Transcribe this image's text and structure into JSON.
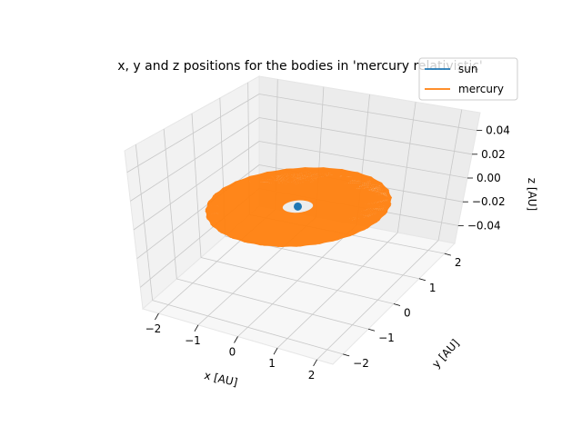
{
  "chart_data": {
    "type": "scatter3d",
    "title": "x, y and z positions for the bodies in 'mercury relativistic'",
    "xlabel": "x [AU]",
    "ylabel": "y [AU]",
    "zlabel": "z [AU]",
    "xlim": [
      -2.4,
      2.4
    ],
    "ylim": [
      -2.4,
      2.4
    ],
    "zlim": [
      -0.055,
      0.055
    ],
    "x_ticks": [
      "−2",
      "−1",
      "0",
      "1",
      "2"
    ],
    "y_ticks": [
      "−2",
      "−1",
      "0",
      "1",
      "2"
    ],
    "z_ticks": [
      "−0.04",
      "−0.02",
      "0.00",
      "0.02",
      "0.04"
    ],
    "x_tick_values": [
      -2,
      -1,
      0,
      1,
      2
    ],
    "y_tick_values": [
      -2,
      -1,
      0,
      1,
      2
    ],
    "z_tick_values": [
      -0.04,
      -0.02,
      0.0,
      0.02,
      0.04
    ],
    "grid": true,
    "legend": "top-right",
    "series": [
      {
        "name": "sun",
        "color": "#1f77b4",
        "x": [
          0
        ],
        "y": [
          0
        ],
        "z": [
          0
        ]
      },
      {
        "name": "mercury",
        "color": "#ff7f0e",
        "orbit": "precessing ellipse",
        "r_min_au": 0.31,
        "r_max_au": 1.85,
        "z": 0
      }
    ]
  }
}
